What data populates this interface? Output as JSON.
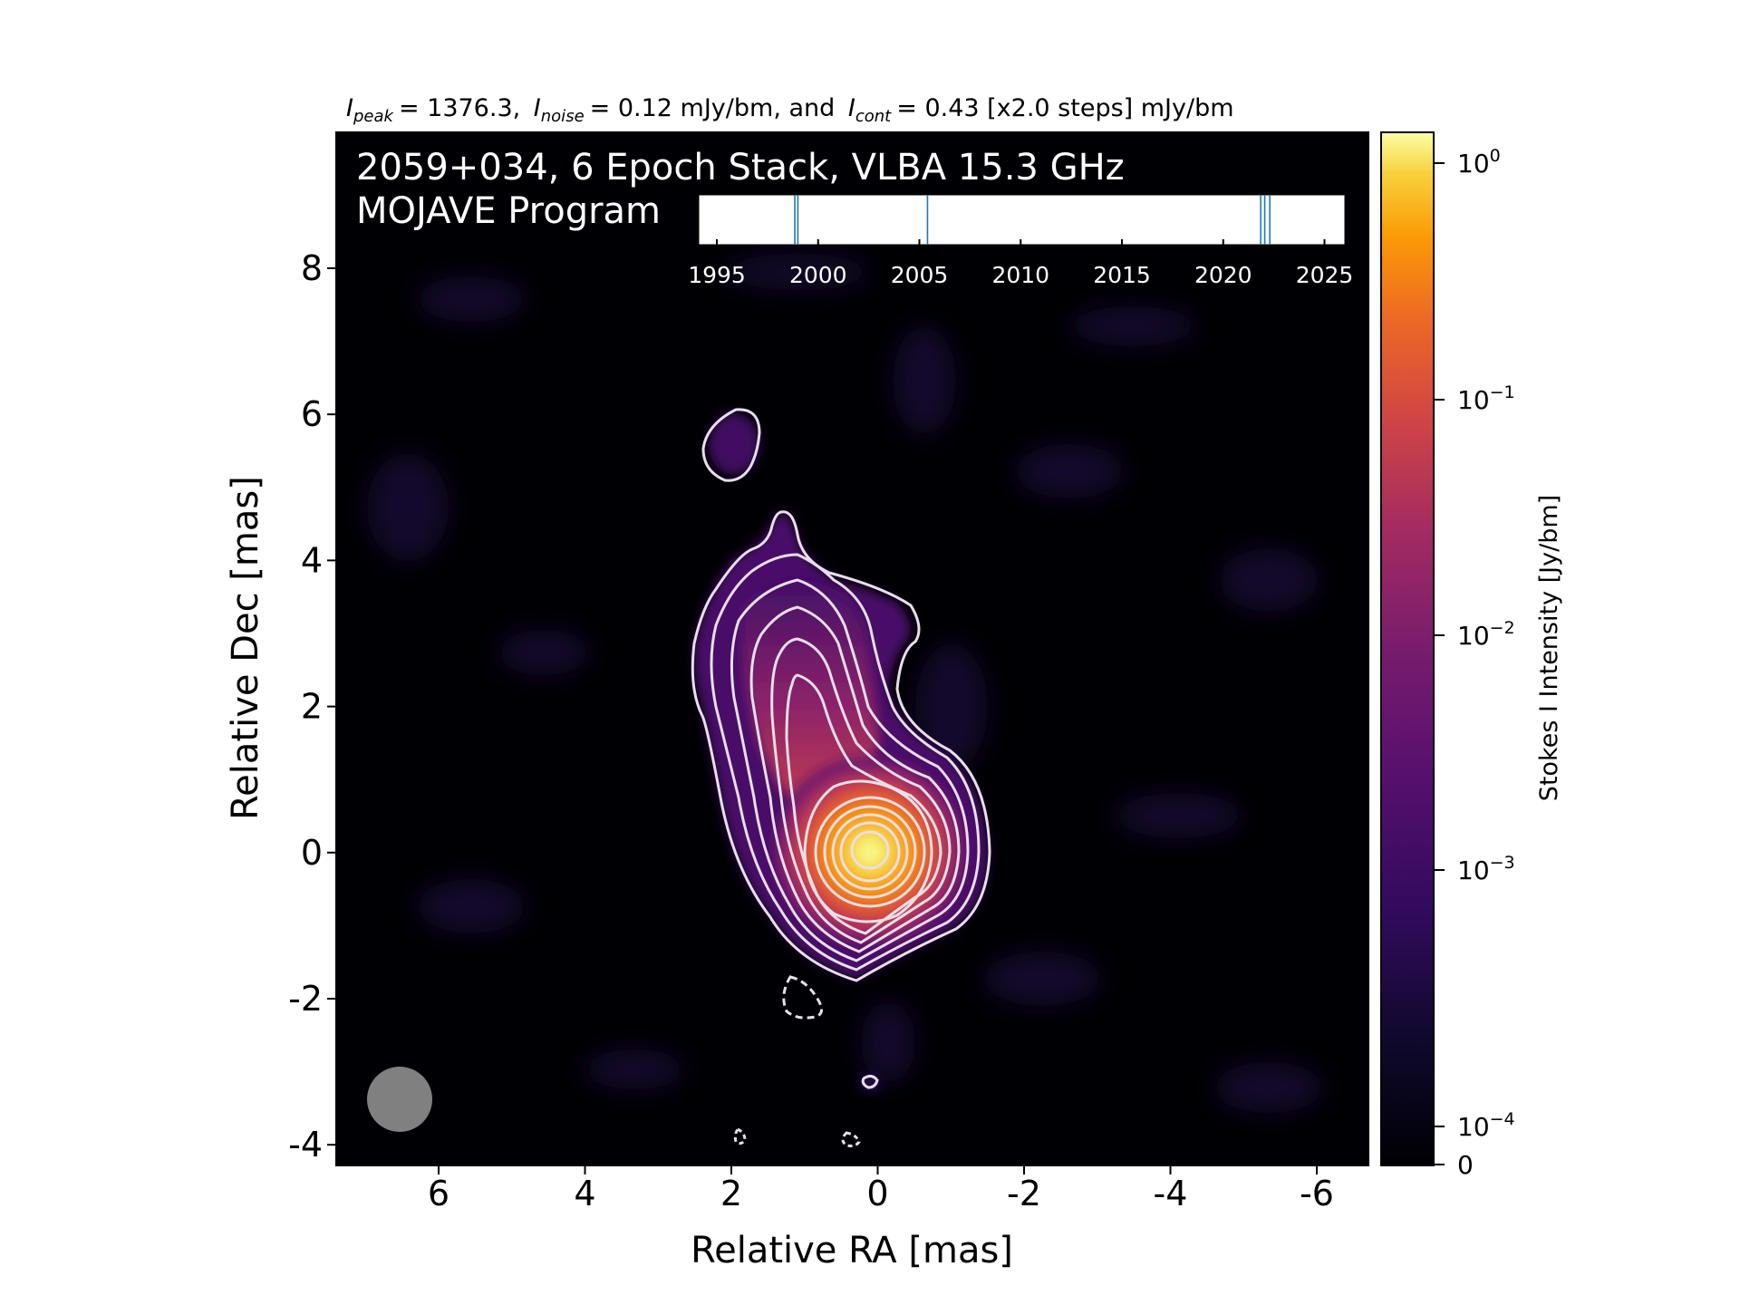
{
  "title": {
    "peak_label": "I",
    "peak_sub": "peak",
    "peak_value": "= 1376.3,",
    "noise_label": "I",
    "noise_sub": "noise",
    "noise_value": "= 0.12 mJy/bm, and",
    "cont_label": "I",
    "cont_sub": "cont",
    "cont_value": "= 0.43 [x2.0 steps] mJy/bm"
  },
  "panel": {
    "source_line": "2059+034, 6 Epoch Stack, VLBA 15.3 GHz",
    "program_line": "MOJAVE Program"
  },
  "axes": {
    "xlabel": "Relative RA [mas]",
    "ylabel": "Relative Dec [mas]",
    "xticks": [
      "6",
      "4",
      "2",
      "0",
      "-2",
      "-4",
      "-6"
    ],
    "yticks": [
      "8",
      "6",
      "4",
      "2",
      "0",
      "-2",
      "-4"
    ]
  },
  "colorbar": {
    "label": "Stokes I Intensity [Jy/bm]",
    "ticks": [
      {
        "base": "10",
        "exp": "0"
      },
      {
        "base": "10",
        "exp": "−1"
      },
      {
        "base": "10",
        "exp": "−2"
      },
      {
        "base": "10",
        "exp": "−3"
      },
      {
        "base": "10",
        "exp": "−4"
      },
      {
        "base": "0",
        "exp": ""
      }
    ],
    "colormap": "inferno"
  },
  "epochs": {
    "ticks": [
      "1995",
      "2000",
      "2005",
      "2010",
      "2015",
      "2020",
      "2025"
    ],
    "years": [
      1998.85,
      1999.0,
      2005.4,
      2021.85,
      2022.05,
      2022.3
    ]
  },
  "colors": {
    "contour": "#e6e0ea",
    "background": "#000004",
    "beam": "#808080",
    "epoch_line": "#1f77b4"
  }
}
